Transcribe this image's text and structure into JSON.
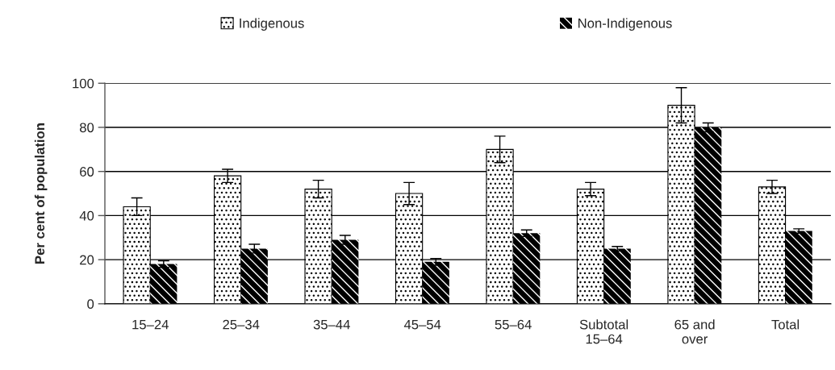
{
  "chart_data": {
    "type": "bar",
    "ylabel": "Per cent of population",
    "categories": [
      "15–24",
      "25–34",
      "35–44",
      "45–54",
      "55–64",
      "Subtotal\n15–64",
      "65 and\nover",
      "Total"
    ],
    "series": [
      {
        "name": "Indigenous",
        "color": "#000000",
        "values": [
          44,
          58,
          52,
          50,
          70,
          52,
          90,
          53
        ],
        "errors": [
          4,
          3,
          4,
          5,
          6,
          3,
          8,
          3
        ]
      },
      {
        "name": "Non-Indigenous",
        "color": "#000000",
        "values": [
          18,
          25,
          29,
          19,
          32,
          25,
          80,
          33
        ],
        "errors": [
          1.5,
          2,
          2,
          1.5,
          1.5,
          1,
          2,
          1
        ]
      }
    ],
    "ylim": [
      0,
      100
    ],
    "yticks": [
      0,
      20,
      40,
      60,
      80,
      100
    ],
    "grid": "y",
    "legend": "top"
  }
}
